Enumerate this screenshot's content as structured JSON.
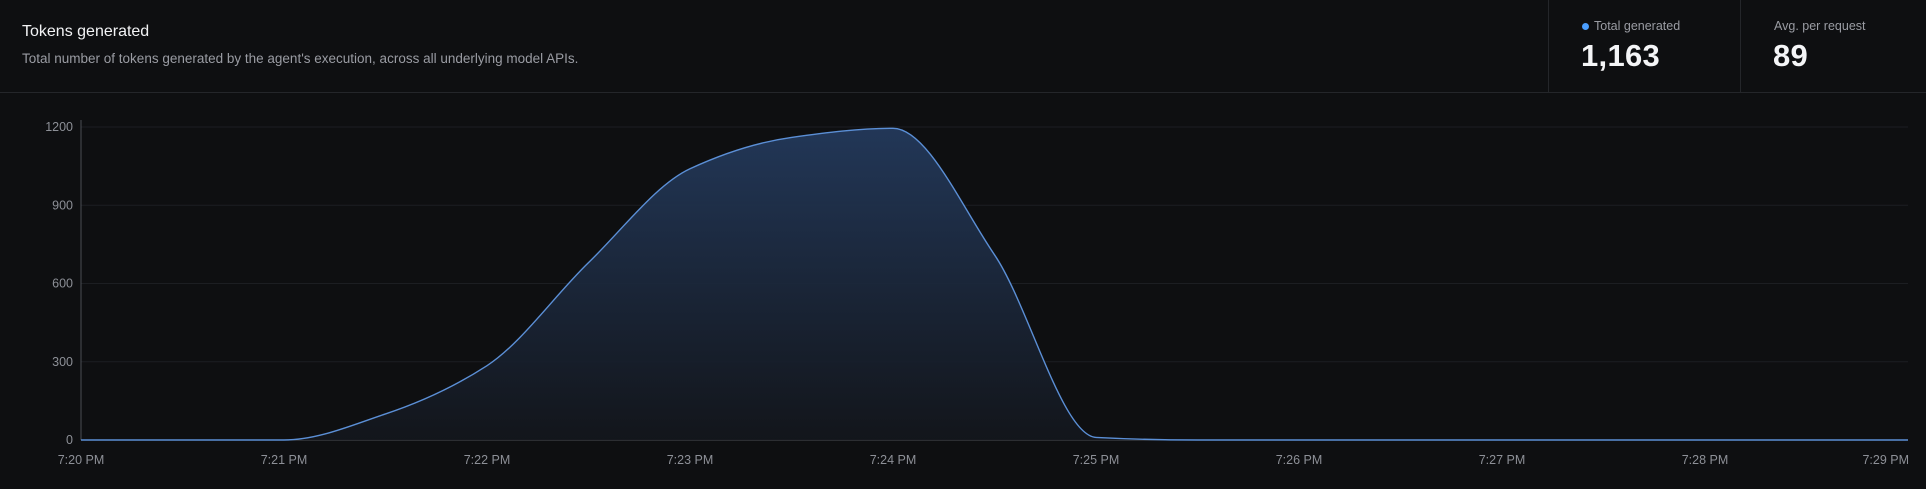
{
  "panel": {
    "title": "Tokens generated",
    "subtitle": "Total number of tokens generated by the agent's execution, across all underlying model APIs."
  },
  "stats": [
    {
      "label": "Total generated",
      "value": "1,163",
      "dot_color": "#4a9eff"
    },
    {
      "label": "Avg. per request",
      "value": "89"
    }
  ],
  "colors": {
    "line": "#5b8fd6",
    "fill_top": "#23395b",
    "fill_bottom": "#13161c",
    "grid": "#1c1e22",
    "axis": "#4a4d54"
  },
  "chart_data": {
    "type": "area",
    "x": [
      "7:20 PM",
      "7:20:30 PM",
      "7:21 PM",
      "7:21:30 PM",
      "7:22 PM",
      "7:22:30 PM",
      "7:23 PM",
      "7:23:30 PM",
      "7:24 PM",
      "7:24:30 PM",
      "7:25 PM",
      "7:25:30 PM",
      "7:26 PM",
      "7:27 PM",
      "7:28 PM",
      "7:29 PM"
    ],
    "series": [
      {
        "values": [
          0,
          0,
          0,
          100,
          285,
          680,
          1040,
          1160,
          1195,
          710,
          10,
          0,
          0,
          0,
          0,
          0
        ]
      }
    ],
    "x_ticks": [
      "7:20 PM",
      "7:21 PM",
      "7:22 PM",
      "7:23 PM",
      "7:24 PM",
      "7:25 PM",
      "7:26 PM",
      "7:27 PM",
      "7:28 PM",
      "7:29 PM"
    ],
    "y_ticks": [
      "0",
      "300",
      "600",
      "900",
      "1200"
    ],
    "ylim": [
      0,
      1200
    ],
    "xlim_minutes": [
      0,
      9
    ],
    "grid": true,
    "legend": "none"
  }
}
